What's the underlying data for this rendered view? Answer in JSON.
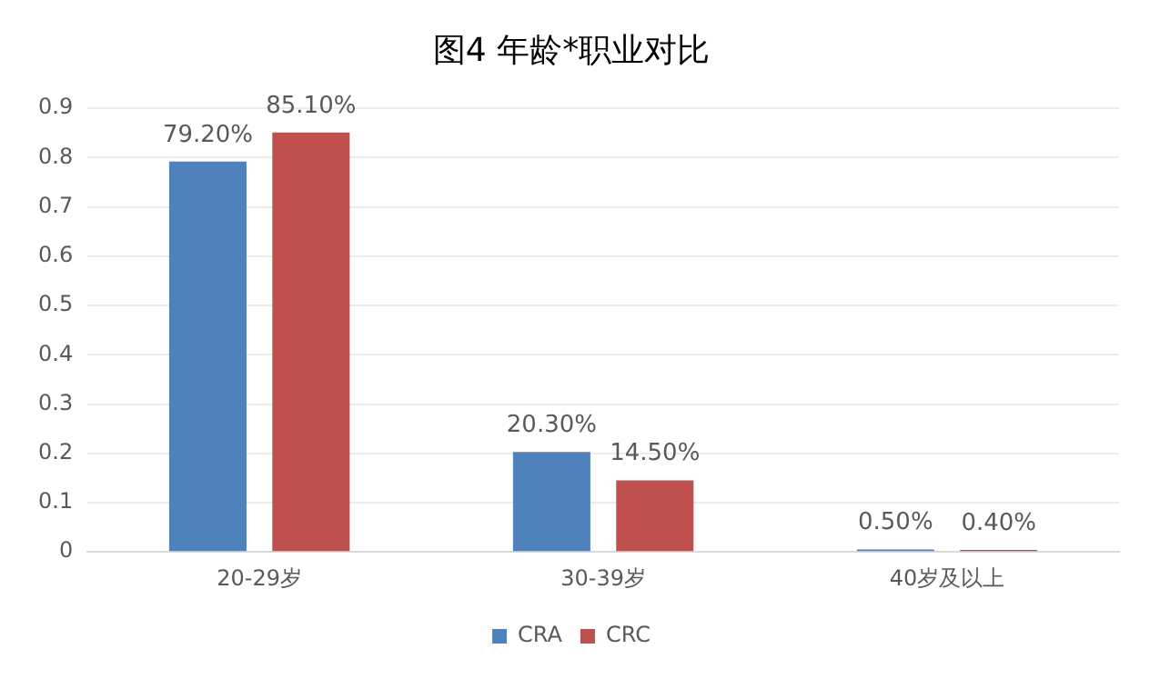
{
  "chart_data": {
    "type": "bar",
    "title": "图4 年龄*职业对比",
    "categories": [
      "20-29岁",
      "30-39岁",
      "40岁及以上"
    ],
    "series": [
      {
        "name": "CRA",
        "color": "#4f81bd",
        "values": [
          0.792,
          0.203,
          0.005
        ],
        "value_labels": [
          "79.20%",
          "20.30%",
          "0.50%"
        ]
      },
      {
        "name": "CRC",
        "color": "#c0504d",
        "values": [
          0.851,
          0.145,
          0.004
        ],
        "value_labels": [
          "85.10%",
          "14.50%",
          "0.40%"
        ]
      }
    ],
    "ylim": [
      0,
      0.9
    ],
    "yticks": [
      0,
      0.1,
      0.2,
      0.3,
      0.4,
      0.5,
      0.6,
      0.7,
      0.8,
      0.9
    ],
    "grid": "y",
    "legend": "bottom"
  }
}
